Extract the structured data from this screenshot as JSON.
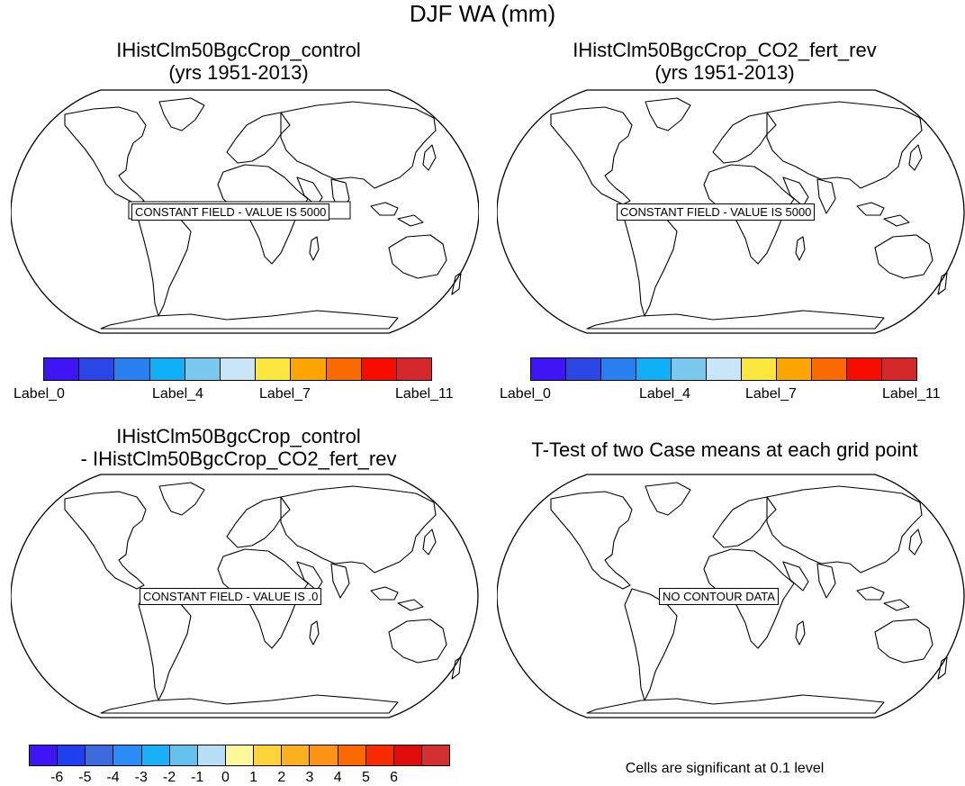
{
  "main_title": "DJF WA (mm)",
  "panels": [
    {
      "title_line1": "IHistClm50BgcCrop_control",
      "title_line2": "(yrs 1951-2013)",
      "field_label": "CONSTANT FIELD - VALUE IS 5000"
    },
    {
      "title_line1": "IHistClm50BgcCrop_CO2_fert_rev",
      "title_line2": "(yrs 1951-2013)",
      "field_label": "CONSTANT FIELD - VALUE IS 5000"
    },
    {
      "title_line1": "IHistClm50BgcCrop_control",
      "title_line2": "- IHistClm50BgcCrop_CO2_fert_rev",
      "field_label": "CONSTANT FIELD - VALUE IS .0"
    },
    {
      "title_line1": "T-Test of two Case means at each grid point",
      "title_line2": "",
      "field_label": "NO CONTOUR DATA"
    }
  ],
  "colorbar_top": {
    "colors": [
      "#3f14f5",
      "#2a47e6",
      "#2a7ff0",
      "#0fb0f5",
      "#7bc8ee",
      "#c8e6f8",
      "#fde63d",
      "#fca400",
      "#fb6a00",
      "#f80c00",
      "#d4282a"
    ],
    "labels": [
      "Label_0",
      "Label_4",
      "Label_7",
      "Label_11"
    ]
  },
  "colorbar_diff": {
    "colors": [
      "#3f14f5",
      "#2040f0",
      "#3c6ade",
      "#2a8cf5",
      "#19b0f5",
      "#64c1ec",
      "#b6dff5",
      "#fff79c",
      "#fdd53a",
      "#fcb01d",
      "#fb9414",
      "#fb6a00",
      "#f82a00",
      "#e00b0b",
      "#d33030"
    ],
    "labels": [
      "-6",
      "-5",
      "-4",
      "-3",
      "-2",
      "-1",
      "0",
      "1",
      "2",
      "3",
      "4",
      "5",
      "6"
    ]
  },
  "significance_note": "Cells are significant at 0.1 level"
}
